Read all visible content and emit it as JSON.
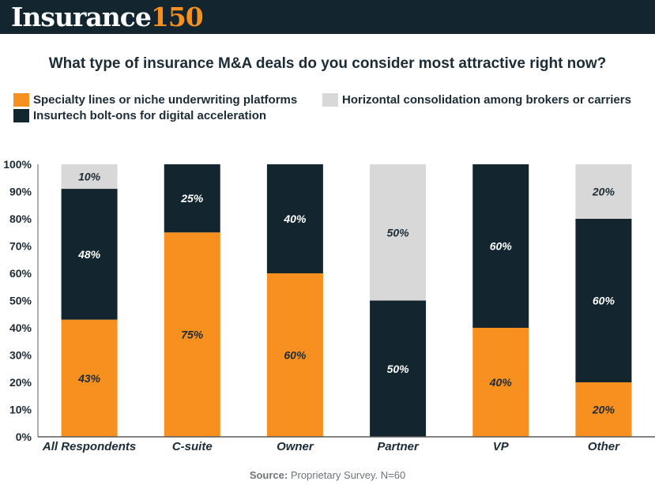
{
  "header": {
    "logo_word": "Insurance",
    "logo_number": "150"
  },
  "footer": {
    "source_label": "Source:",
    "source_text": " Proprietary Survey. N=60"
  },
  "colors": {
    "header_bg": "#13252f",
    "specialty": "#f7901e",
    "horizontal": "#d8d8d8",
    "insurtech": "#13252f",
    "label_on_light": "#1c2b35",
    "label_on_dark": "#ffffff"
  },
  "chart_data": {
    "type": "bar",
    "stacked": true,
    "title": "What type of insurance M&A deals do you consider most attractive right now?",
    "xlabel": "",
    "ylabel": "",
    "ylim": [
      0,
      100
    ],
    "yticks": [
      "0%",
      "10%",
      "20%",
      "30%",
      "40%",
      "50%",
      "60%",
      "70%",
      "80%",
      "90%",
      "100%"
    ],
    "legend_position": "top-left",
    "categories": [
      "All Respondents",
      "C-suite",
      "Owner",
      "Partner",
      "VP",
      "Other"
    ],
    "series": [
      {
        "name": "Specialty lines or niche underwriting platforms",
        "color": "#f7901e",
        "values": [
          43,
          75,
          60,
          0,
          40,
          20
        ],
        "labels": [
          "43%",
          "75%",
          "60%",
          "",
          "40%",
          "20%"
        ]
      },
      {
        "name": "Insurtech bolt-ons for digital acceleration",
        "color": "#13252f",
        "values": [
          48,
          25,
          40,
          50,
          60,
          60
        ],
        "labels": [
          "48%",
          "25%",
          "40%",
          "50%",
          "60%",
          "60%"
        ]
      },
      {
        "name": "Horizontal consolidation among brokers or carriers",
        "color": "#d8d8d8",
        "values": [
          10,
          0,
          0,
          50,
          0,
          20
        ],
        "labels": [
          "10%",
          "",
          "",
          "50%",
          "",
          "20%"
        ]
      }
    ]
  }
}
